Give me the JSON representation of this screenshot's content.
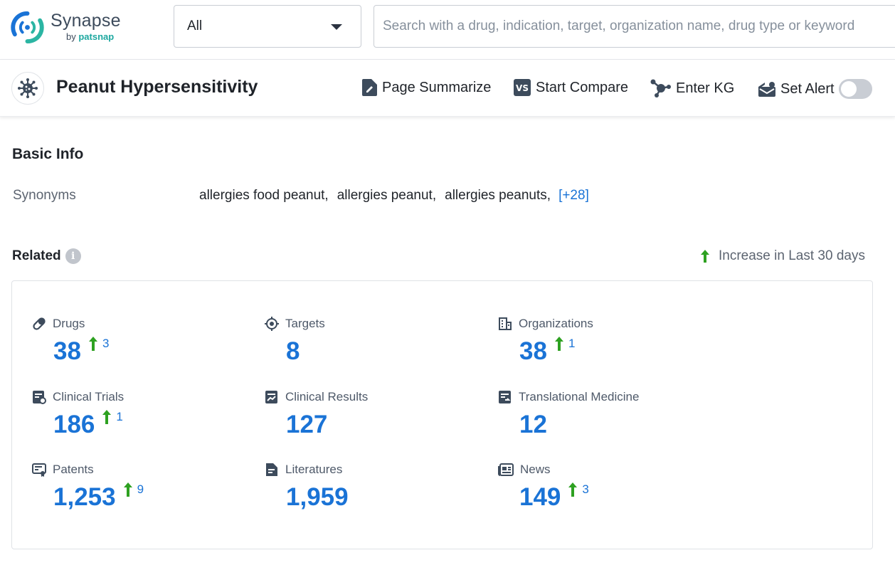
{
  "brand": {
    "name": "Synapse",
    "by": "by",
    "by_brand": "patsnap",
    "accent": "#1ea8a0"
  },
  "search": {
    "category": "All",
    "placeholder": "Search with a drug, indication, target, organization name, drug type or keyword"
  },
  "page": {
    "title": "Peanut Hypersensitivity",
    "avatar_icon": "virus-icon"
  },
  "actions": {
    "summarize": "Page Summarize",
    "compare": "Start Compare",
    "kg": "Enter KG",
    "alert": "Set Alert",
    "alert_enabled": false
  },
  "basic_info": {
    "title": "Basic Info",
    "synonyms_label": "Synonyms",
    "synonyms": [
      "allergies food peanut,",
      "allergies peanut,",
      "allergies peanuts,"
    ],
    "synonyms_more": "[+28]"
  },
  "related": {
    "title": "Related",
    "legend": "Increase in Last 30 days",
    "increase_color": "#2ea121",
    "value_color": "#1a73d6",
    "stats": [
      {
        "label": "Drugs",
        "icon": "pill-icon",
        "value": "38",
        "increase": "3"
      },
      {
        "label": "Targets",
        "icon": "target-icon",
        "value": "8",
        "increase": ""
      },
      {
        "label": "Organizations",
        "icon": "building-icon",
        "value": "38",
        "increase": "1"
      },
      {
        "label": "Clinical Trials",
        "icon": "clinical-trial-icon",
        "value": "186",
        "increase": "1"
      },
      {
        "label": "Clinical Results",
        "icon": "clinical-results-icon",
        "value": "127",
        "increase": ""
      },
      {
        "label": "Translational Medicine",
        "icon": "translational-icon",
        "value": "12",
        "increase": ""
      },
      {
        "label": "Patents",
        "icon": "patent-icon",
        "value": "1,253",
        "increase": "9"
      },
      {
        "label": "Literatures",
        "icon": "document-icon",
        "value": "1,959",
        "increase": ""
      },
      {
        "label": "News",
        "icon": "news-icon",
        "value": "149",
        "increase": "3"
      }
    ]
  }
}
